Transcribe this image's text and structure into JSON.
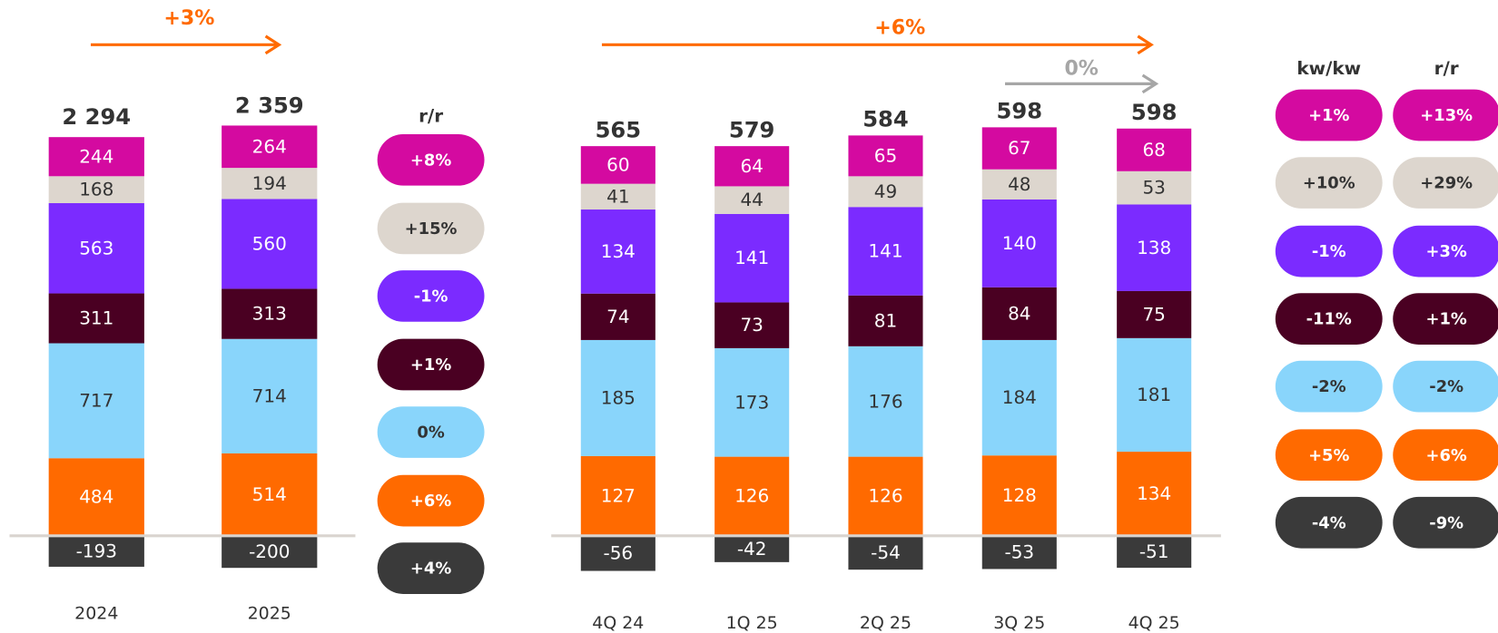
{
  "chart_data": [
    {
      "type": "stacked_bar",
      "categories": [
        "2024",
        "2025"
      ],
      "total_labels": [
        "2 294",
        "2 359"
      ],
      "ylim": [
        -250,
        2600
      ],
      "series": [
        {
          "color": "#ff6a00",
          "values": [
            484,
            514
          ]
        },
        {
          "color": "#89d5fb",
          "values": [
            717,
            714
          ]
        },
        {
          "color": "#4a0022",
          "values": [
            311,
            313
          ]
        },
        {
          "color": "#7b2bff",
          "values": [
            563,
            560
          ]
        },
        {
          "color": "#ddd6ce",
          "values": [
            168,
            194
          ]
        },
        {
          "color": "#d40aa0",
          "values": [
            244,
            264
          ]
        },
        {
          "color": "#3a3a3a",
          "values": [
            -193,
            -200
          ]
        }
      ],
      "annotations": [
        {
          "label": "+3%",
          "color": "#ff6a00"
        }
      ],
      "badge_columns": [
        {
          "header": "r/r",
          "labels": [
            "+8%",
            "+15%",
            "-1%",
            "+1%",
            "0%",
            "+6%",
            "+4%"
          ]
        }
      ]
    },
    {
      "type": "stacked_bar",
      "categories": [
        "4Q 24",
        "1Q 25",
        "2Q 25",
        "3Q 25",
        "4Q 25"
      ],
      "totals": [
        565,
        579,
        584,
        598,
        598
      ],
      "ylim": [
        -70,
        640
      ],
      "series": [
        {
          "color": "#ff6a00",
          "values": [
            127,
            126,
            126,
            128,
            134
          ]
        },
        {
          "color": "#89d5fb",
          "values": [
            185,
            173,
            176,
            184,
            181
          ]
        },
        {
          "color": "#4a0022",
          "values": [
            74,
            73,
            81,
            84,
            75
          ]
        },
        {
          "color": "#7b2bff",
          "values": [
            134,
            141,
            141,
            140,
            138
          ]
        },
        {
          "color": "#ddd6ce",
          "values": [
            41,
            44,
            49,
            48,
            53
          ]
        },
        {
          "color": "#d40aa0",
          "values": [
            60,
            64,
            65,
            67,
            68
          ]
        },
        {
          "color": "#3a3a3a",
          "values": [
            -56,
            -42,
            -54,
            -53,
            -51
          ]
        }
      ],
      "annotations": [
        {
          "label": "+6%",
          "color": "#ff6a00"
        },
        {
          "label": "0%",
          "color": "#a6a6a6"
        }
      ],
      "badge_columns": [
        {
          "header": "kw/kw",
          "labels": [
            "+1%",
            "+10%",
            "-1%",
            "-11%",
            "-2%",
            "+5%",
            "-4%"
          ]
        },
        {
          "header": "r/r",
          "labels": [
            "+13%",
            "+29%",
            "+3%",
            "+1%",
            "-2%",
            "+6%",
            "-9%"
          ]
        }
      ]
    }
  ]
}
